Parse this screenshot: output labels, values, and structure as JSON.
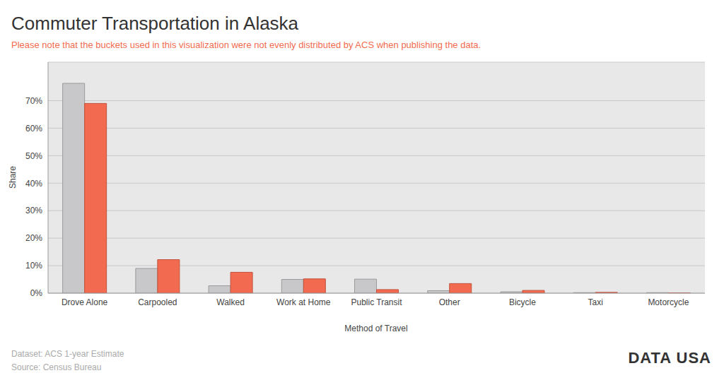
{
  "chart_data": {
    "type": "bar",
    "title": "Commuter Transportation in Alaska",
    "subtitle": "Please note that the buckets used in this visualization were not evenly distributed by ACS when publishing the data.",
    "x_label": "Method of Travel",
    "y_label": "Share",
    "footnotes": [
      "Dataset: ACS 1-year Estimate",
      "Source: Census Bureau"
    ],
    "logo": "DATA USA",
    "categories": [
      "Drove Alone",
      "Carpooled",
      "Walked",
      "Work at Home",
      "Public Transit",
      "Other",
      "Bicycle",
      "Taxi",
      "Motorcycle"
    ],
    "series": [
      {
        "color": "#c8c8ca",
        "values": [
          76.3,
          9.0,
          2.7,
          5.0,
          5.1,
          0.9,
          0.5,
          0.2,
          0.2
        ]
      },
      {
        "color": "#f26b50",
        "values": [
          69.0,
          12.2,
          7.6,
          5.2,
          1.3,
          3.5,
          1.0,
          0.3,
          0.1
        ]
      }
    ],
    "ylim": [
      0,
      84
    ],
    "yticks": [
      {
        "value": 0,
        "label": "0%"
      },
      {
        "value": 10,
        "label": "10%"
      },
      {
        "value": 20,
        "label": "20%"
      },
      {
        "value": 30,
        "label": "30%"
      },
      {
        "value": 40,
        "label": "40%"
      },
      {
        "value": 50,
        "label": "50%"
      },
      {
        "value": 60,
        "label": "60%"
      },
      {
        "value": 70,
        "label": "70%"
      }
    ],
    "grid": true
  }
}
